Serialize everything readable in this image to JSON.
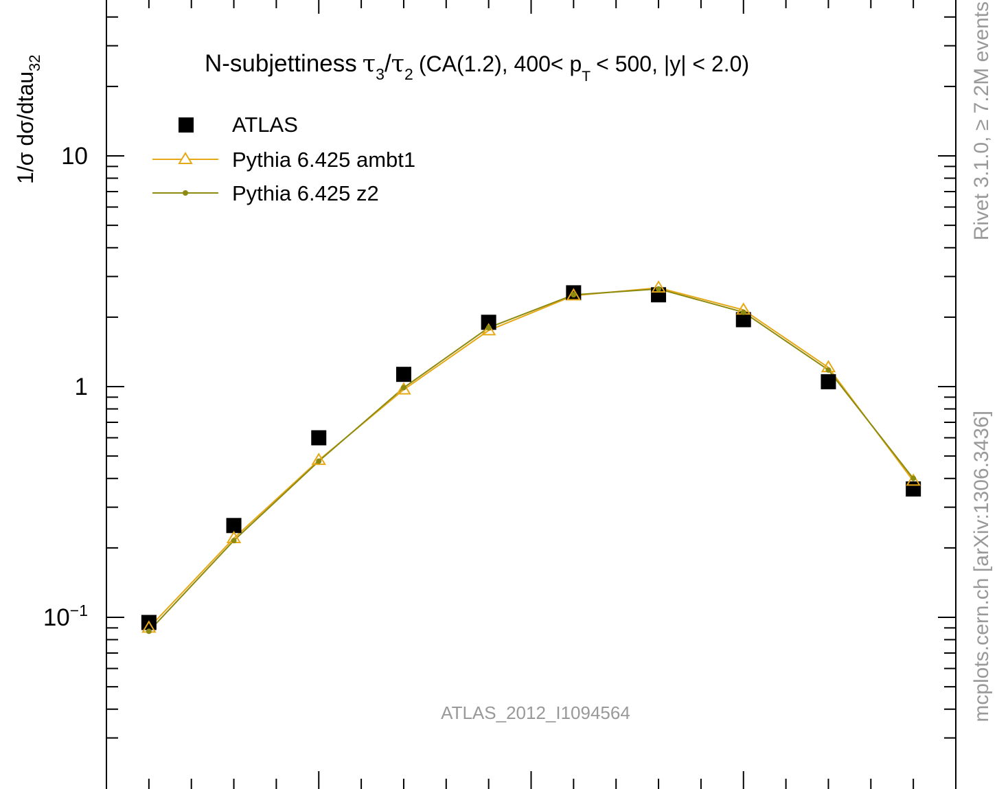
{
  "chart_data": {
    "type": "line",
    "title": "N-subjettiness",
    "title_tau_num": "τ",
    "title_num_sub": "3",
    "title_slash": "/",
    "title_tau_den": "τ",
    "title_den_sub": "2",
    "title_rest1": "(CA(1.2), 400< p",
    "title_pt_sub": "T",
    "title_rest2": "< 500, |y| < 2.0)",
    "ylabel_main": "1/σ dσ/dtau",
    "ylabel_sub": "32",
    "yscale": "log",
    "ylim": [
      0.022,
      45
    ],
    "xlim": [
      0.0,
      1.0
    ],
    "x": [
      0.05,
      0.15,
      0.25,
      0.35,
      0.45,
      0.55,
      0.65,
      0.75,
      0.85,
      0.95
    ],
    "y_tick_labels": [
      {
        "value": 10,
        "label": "10"
      },
      {
        "value": 1,
        "label": "1"
      },
      {
        "value": 0.1,
        "label": "10",
        "sup": "−1"
      }
    ],
    "series": [
      {
        "name": "ATLAS",
        "marker": "square",
        "color": "#000000",
        "values": [
          0.095,
          0.25,
          0.6,
          1.13,
          1.9,
          2.55,
          2.5,
          1.95,
          1.05,
          0.36
        ]
      },
      {
        "name": "Pythia 6.425 ambt1",
        "marker": "triangle-open",
        "color": "#e6a817",
        "values": [
          0.09,
          0.22,
          0.48,
          0.97,
          1.75,
          2.48,
          2.68,
          2.15,
          1.21,
          0.39
        ]
      },
      {
        "name": "Pythia 6.425 z2",
        "marker": "dot",
        "color": "#8c8a0f",
        "values": [
          0.087,
          0.215,
          0.475,
          0.99,
          1.8,
          2.5,
          2.65,
          2.1,
          1.18,
          0.4
        ]
      }
    ],
    "legend_position": "top-left",
    "annotation": "ATLAS_2012_I1094564",
    "side_text_top": "Rivet 3.1.0, ≥ 7.2M events",
    "side_text_bottom": "mcplots.cern.ch [arXiv:1306.3436]"
  }
}
